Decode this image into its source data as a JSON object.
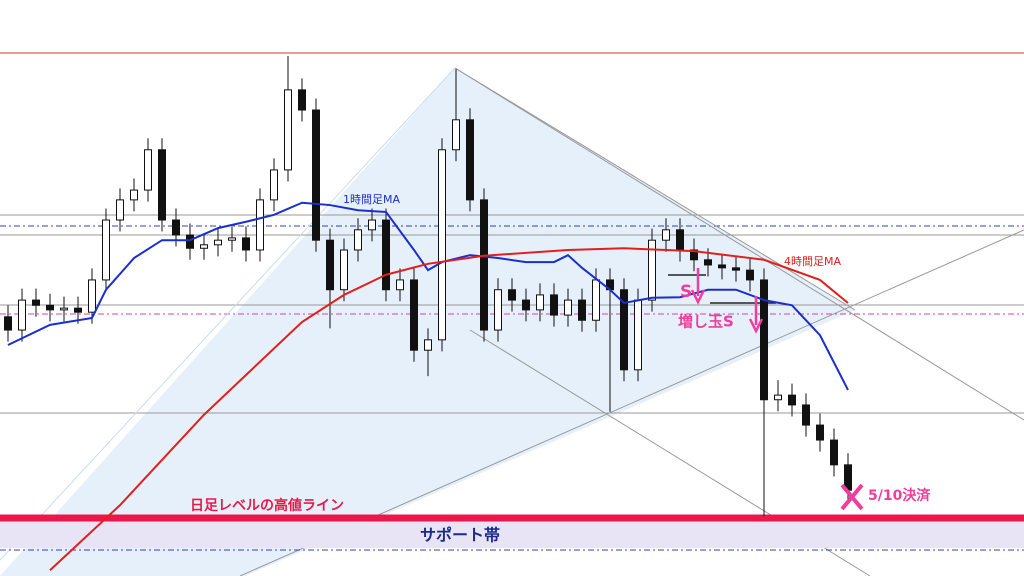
{
  "chart_data": {
    "type": "candlestick",
    "xlim": [
      0,
      60
    ],
    "ylim": [
      0,
      100
    ],
    "open": [
      45.0,
      42.7,
      47.9,
      47.0,
      46.2,
      46.5,
      45.8,
      51.4,
      61.8,
      65.3,
      67.0,
      74.0,
      61.8,
      59.2,
      56.9,
      57.5,
      58.3,
      58.7,
      56.6,
      65.3,
      70.5,
      84.4,
      80.9,
      58.3,
      49.7,
      56.6,
      60.1,
      61.8,
      49.7,
      51.4,
      39.2,
      41.0,
      74.0,
      79.2,
      65.3,
      42.7,
      49.7,
      47.9,
      46.2,
      48.8,
      45.3,
      47.9,
      44.4,
      51.4,
      49.7,
      35.8,
      47.9,
      58.3,
      60.1,
      56.6,
      54.9,
      54.0,
      53.5,
      53.1,
      51.4,
      30.6,
      31.4,
      29.7,
      26.2,
      23.6,
      19.3
    ],
    "high": [
      47.0,
      49.9,
      49.9,
      49.0,
      48.5,
      48.5,
      53.4,
      63.8,
      67.3,
      69.0,
      76.0,
      76.0,
      63.8,
      61.2,
      59.5,
      60.3,
      60.7,
      60.7,
      67.3,
      72.5,
      90.3,
      86.4,
      82.9,
      60.3,
      58.6,
      62.1,
      63.8,
      63.8,
      53.4,
      53.4,
      43.0,
      76.0,
      88.0,
      81.2,
      67.3,
      51.7,
      51.7,
      49.9,
      50.8,
      50.8,
      49.9,
      49.9,
      53.4,
      53.4,
      51.7,
      49.9,
      60.3,
      62.1,
      62.1,
      58.6,
      56.9,
      56.0,
      55.5,
      55.1,
      53.4,
      34.0,
      33.4,
      31.7,
      28.2,
      25.6,
      21.3
    ],
    "low": [
      40.7,
      40.7,
      45.0,
      44.2,
      44.2,
      43.8,
      43.8,
      49.4,
      59.8,
      63.3,
      65.0,
      59.8,
      57.2,
      54.9,
      54.9,
      55.5,
      56.3,
      54.6,
      54.6,
      63.3,
      68.5,
      78.9,
      56.3,
      43.0,
      47.7,
      54.6,
      58.1,
      47.7,
      47.7,
      37.2,
      34.7,
      39.0,
      72.0,
      63.3,
      40.7,
      40.7,
      45.9,
      44.2,
      44.2,
      43.3,
      43.3,
      42.4,
      42.4,
      28.5,
      33.8,
      33.8,
      45.9,
      56.3,
      54.6,
      52.9,
      52.0,
      51.5,
      51.1,
      49.4,
      10.4,
      28.6,
      27.7,
      24.2,
      21.6,
      17.3,
      12.9
    ],
    "close": [
      42.7,
      47.9,
      47.0,
      46.2,
      46.5,
      45.8,
      51.4,
      61.8,
      65.3,
      67.0,
      74.0,
      61.8,
      59.2,
      56.9,
      57.5,
      58.3,
      58.7,
      56.6,
      65.3,
      70.5,
      84.4,
      80.9,
      58.3,
      49.7,
      56.6,
      60.1,
      61.8,
      49.7,
      51.4,
      39.2,
      41.0,
      74.0,
      79.2,
      65.3,
      42.7,
      49.7,
      47.9,
      46.2,
      48.8,
      45.3,
      47.9,
      44.4,
      51.4,
      49.7,
      35.8,
      47.9,
      58.3,
      60.1,
      56.6,
      54.9,
      54.0,
      53.5,
      53.1,
      51.4,
      30.6,
      31.4,
      29.7,
      26.2,
      23.6,
      19.3,
      14.9
    ],
    "series": [
      {
        "name": "1時間足MA",
        "color": "#1a2fcc",
        "x": [
          0,
          3,
          6,
          7,
          9,
          11,
          13,
          15,
          17,
          19,
          21,
          23,
          25,
          27,
          29,
          30,
          31,
          33,
          35,
          37,
          39,
          40,
          41,
          43,
          44,
          46,
          48,
          50,
          52,
          54,
          56,
          58,
          60
        ],
        "values": [
          40.1,
          43.6,
          44.8,
          49.7,
          55.2,
          58.3,
          58.3,
          60.4,
          61.5,
          62.7,
          64.8,
          64.4,
          63.5,
          63.2,
          56.6,
          53.1,
          54.5,
          55.7,
          55.2,
          54.5,
          54.5,
          55.7,
          53.5,
          49.7,
          47.4,
          48.3,
          48.4,
          49.7,
          49.7,
          47.9,
          47.0,
          41.8,
          32.3
        ]
      },
      {
        "name": "4時間足MA",
        "color": "#e0201c",
        "x": [
          3,
          8,
          14,
          17,
          21,
          24,
          27,
          30,
          34,
          40,
          44,
          49,
          54,
          58,
          60
        ],
        "values": [
          1.0,
          12.3,
          28.0,
          34.9,
          44.1,
          48.8,
          52.3,
          54.2,
          55.6,
          56.6,
          56.9,
          56.4,
          54.9,
          51.4,
          47.4
        ]
      }
    ],
    "annotations": {
      "entry": "S",
      "add": "増し玉S",
      "high_line": "日足レベルの高値ライン",
      "support": "サポート帯",
      "exit": "5/10決済"
    }
  }
}
